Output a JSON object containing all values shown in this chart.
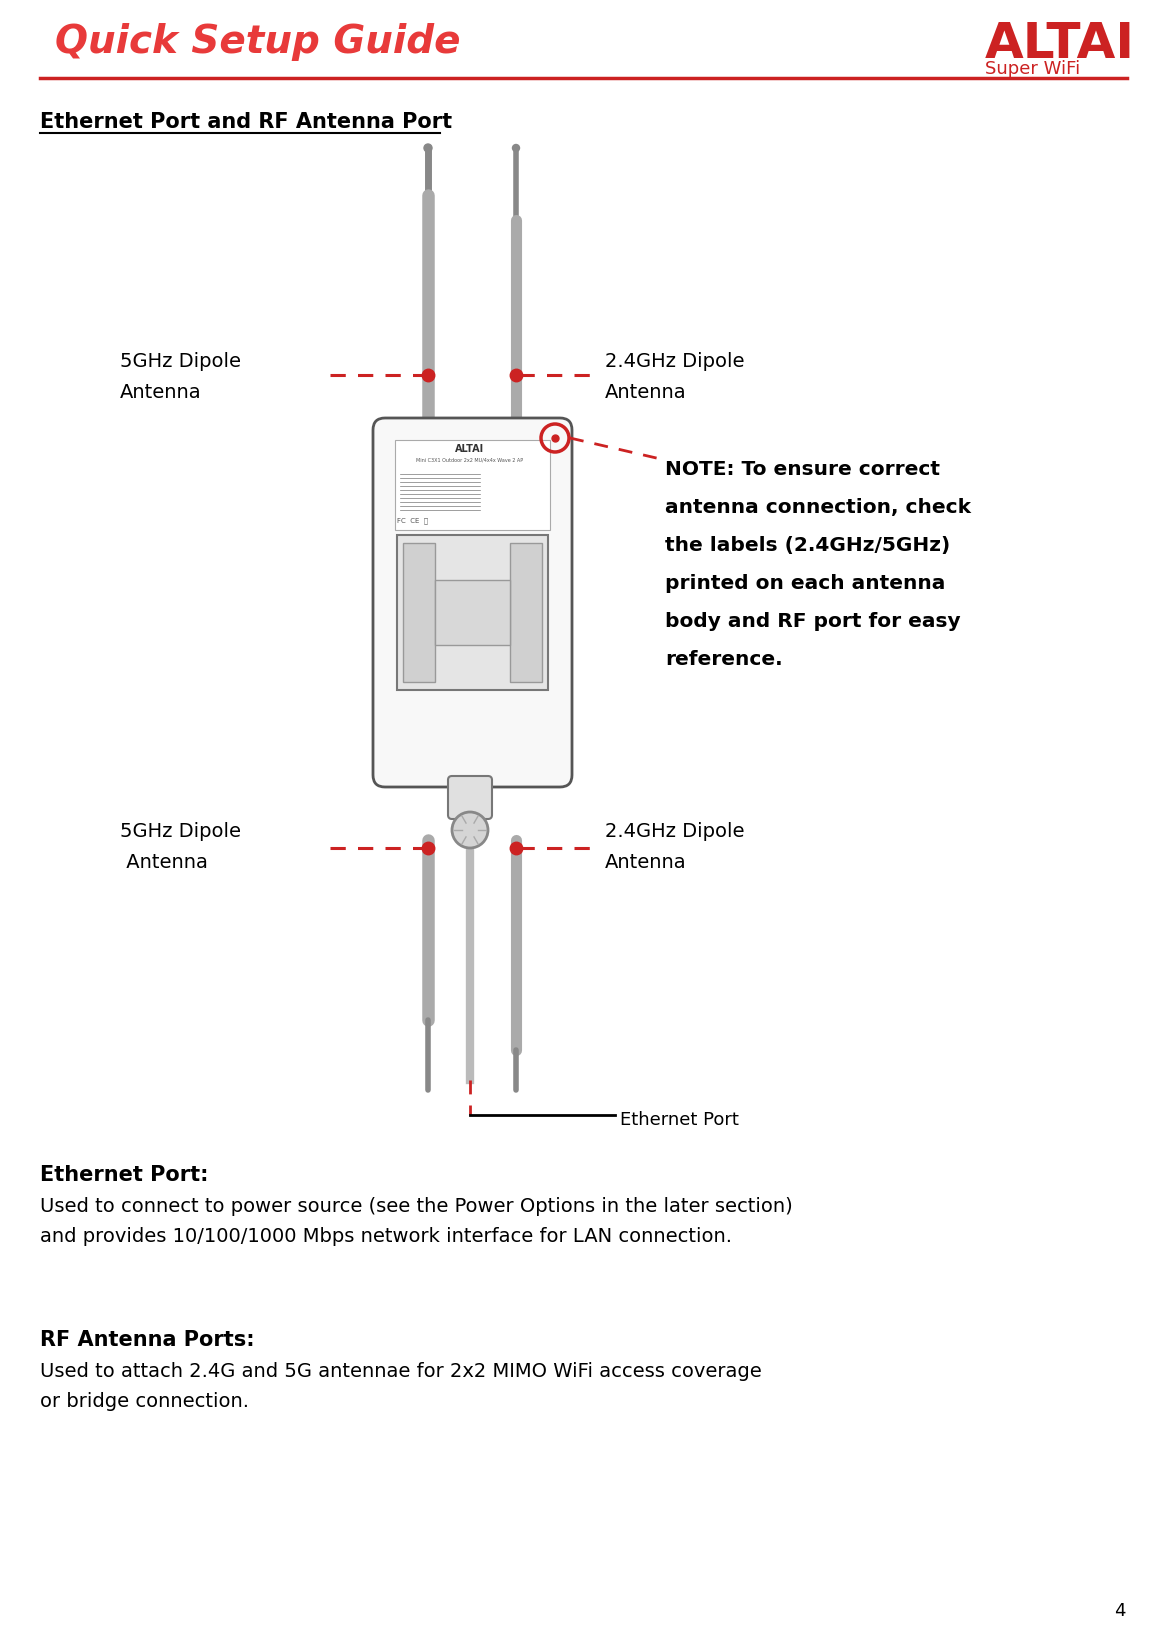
{
  "title": "Quick Setup Guide",
  "title_color": "#E83A3A",
  "logo_text": "ALTAI",
  "logo_subtext": "Super WiFi",
  "logo_color": "#CC2222",
  "section_title": "Ethernet Port and RF Antenna Port",
  "section_title_color": "#000000",
  "label_5ghz_top": "5GHz Dipole\nAntenna",
  "label_24ghz_top": "2.4GHz Dipole\nAntenna",
  "label_5ghz_bottom": "5GHz Dipole\n Antenna",
  "label_24ghz_bottom": "2.4GHz Dipole\nAntenna",
  "label_ethernet": "Ethernet Port",
  "note_line1": "NOTE: To ensure correct",
  "note_line2": "antenna connection, check",
  "note_line3": "the labels (2.4GHz/5GHz)",
  "note_line4": "printed on each antenna",
  "note_line5": "body and RF port for easy",
  "note_line6": "reference.",
  "eth_port_title": "Ethernet Port:",
  "eth_port_body1": "Used to connect to power source (see the Power Options in the later section)",
  "eth_port_body2": "and provides 10/100/1000 Mbps network interface for LAN connection.",
  "rf_port_title": "RF Antenna Ports:",
  "rf_port_body1": "Used to attach 2.4G and 5G antennae for 2x2 MIMO WiFi access coverage",
  "rf_port_body2": "or bridge connection.",
  "page_num": "4",
  "bg_color": "#FFFFFF",
  "line_color": "#CC2222",
  "dashed_color": "#CC2222",
  "device_edge": "#555555",
  "device_face": "#f8f8f8",
  "antenna_color": "#aaaaaa",
  "antenna_dark": "#888888"
}
